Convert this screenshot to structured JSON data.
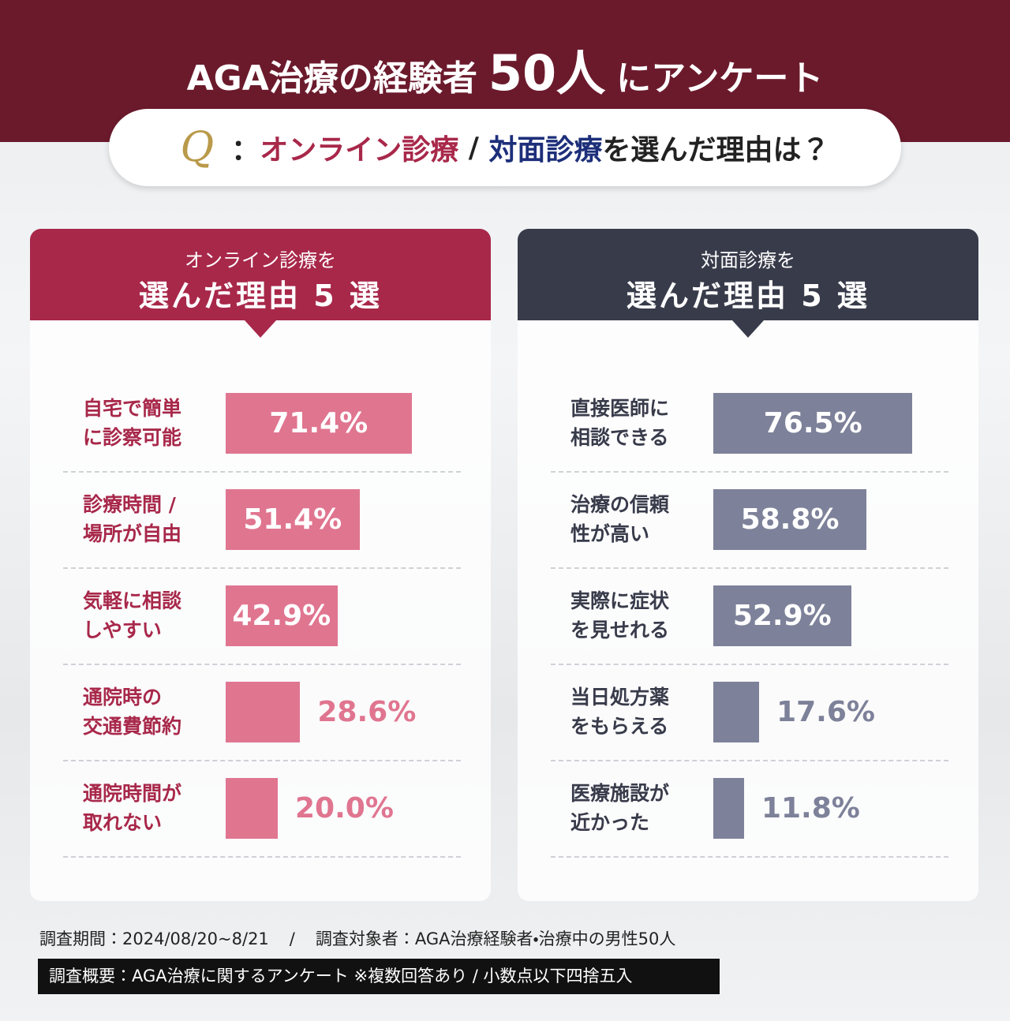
{
  "header": {
    "title_parts": [
      "AGA治療の経験者",
      "50人",
      "にアンケート"
    ]
  },
  "question": {
    "mark": "Q",
    "parts": [
      "：",
      "オンライン診療",
      " / ",
      "対面診療",
      "を選んだ理由は？"
    ]
  },
  "chart_data": [
    {
      "type": "bar",
      "subtitle": "オンライン診療を",
      "title": "選んだ理由 5 選",
      "header_color": "#a8284a",
      "text_color": "#a8284a",
      "color": "#e07590",
      "categories": [
        "自宅で簡単\nに診察可能",
        "診療時間 /\n場所が自由",
        "気軽に相談\nしやすい",
        "通院時の\n交通費節約",
        "通院時間が\n取れない"
      ],
      "values": [
        71.4,
        51.4,
        42.9,
        28.6,
        20.0
      ],
      "value_labels": [
        "71.4%",
        "51.4%",
        "42.9%",
        "28.6%",
        "20.0%"
      ],
      "xlim": [
        0,
        100
      ]
    },
    {
      "type": "bar",
      "subtitle": "対面診療を",
      "title": "選んだ理由 5 選",
      "header_color": "#383b4a",
      "text_color": "#383b4a",
      "color": "#7d8199",
      "categories": [
        "直接医師に\n相談できる",
        "治療の信頼\n性が高い",
        "実際に症状\nを見せれる",
        "当日処方薬\nをもらえる",
        "医療施設が\n近かった"
      ],
      "values": [
        76.5,
        58.8,
        52.9,
        17.6,
        11.8
      ],
      "value_labels": [
        "76.5%",
        "58.8%",
        "52.9%",
        "17.6%",
        "11.8%"
      ],
      "xlim": [
        0,
        100
      ]
    }
  ],
  "footer": {
    "period": "調査期間：2024/08/20~8/21",
    "separator": "/",
    "target": "調査対象者：AGA治療経験者・治療中の男性50人",
    "summary": "調査概要：AGA治療に関するアンケート ※複数回答あり / 小数点以下四捨五入"
  }
}
